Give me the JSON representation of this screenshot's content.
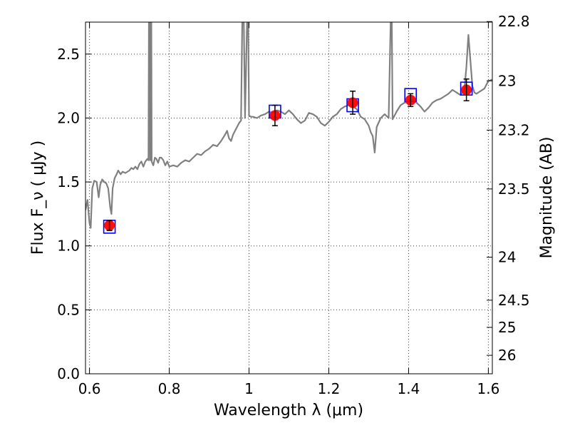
{
  "chart_data": {
    "type": "line",
    "xlabel": "Wavelength  λ (μm)",
    "ylabel": "Flux  F_ν  ( μJy )",
    "ylabel_right": "Magnitude (AB)",
    "xlim": [
      0.59,
      1.61
    ],
    "ylim": [
      0.0,
      2.75
    ],
    "grid": true,
    "x_ticks": [
      0.6,
      0.8,
      1.0,
      1.2,
      1.4,
      1.6
    ],
    "x_tick_labels": [
      "0.6",
      "0.8",
      "1",
      "1.2",
      "1.4",
      "1.6"
    ],
    "y_ticks": [
      0.0,
      0.5,
      1.0,
      1.5,
      2.0,
      2.5
    ],
    "y_tick_labels": [
      "0.0",
      "0.5",
      "1.0",
      "1.5",
      "2.0",
      "2.5"
    ],
    "right_ticks": [
      {
        "mag": 22.8,
        "label": "22.8"
      },
      {
        "mag": 23.0,
        "label": "23"
      },
      {
        "mag": 23.2,
        "label": "23.2"
      },
      {
        "mag": 23.5,
        "label": "23.5"
      },
      {
        "mag": 24.0,
        "label": "24"
      },
      {
        "mag": 24.5,
        "label": "24.5"
      },
      {
        "mag": 25.0,
        "label": "25"
      },
      {
        "mag": 26.0,
        "label": "26"
      }
    ],
    "model_spectrum": {
      "color": "#808080",
      "points": [
        [
          0.59,
          1.28
        ],
        [
          0.595,
          1.36
        ],
        [
          0.6,
          1.18
        ],
        [
          0.603,
          1.14
        ],
        [
          0.607,
          1.45
        ],
        [
          0.612,
          1.51
        ],
        [
          0.618,
          1.5
        ],
        [
          0.623,
          1.38
        ],
        [
          0.627,
          1.48
        ],
        [
          0.632,
          1.52
        ],
        [
          0.637,
          1.5
        ],
        [
          0.642,
          1.49
        ],
        [
          0.647,
          1.45
        ],
        [
          0.652,
          1.3
        ],
        [
          0.655,
          1.25
        ],
        [
          0.658,
          1.45
        ],
        [
          0.663,
          1.53
        ],
        [
          0.668,
          1.56
        ],
        [
          0.672,
          1.59
        ],
        [
          0.678,
          1.56
        ],
        [
          0.683,
          1.58
        ],
        [
          0.69,
          1.57
        ],
        [
          0.7,
          1.59
        ],
        [
          0.705,
          1.61
        ],
        [
          0.71,
          1.6
        ],
        [
          0.715,
          1.62
        ],
        [
          0.72,
          1.6
        ],
        [
          0.725,
          1.64
        ],
        [
          0.73,
          1.66
        ],
        [
          0.735,
          1.62
        ],
        [
          0.74,
          1.66
        ],
        [
          0.745,
          1.68
        ],
        [
          0.748,
          1.67
        ],
        [
          0.749,
          2.75
        ],
        [
          0.751,
          2.75
        ],
        [
          0.752,
          1.67
        ],
        [
          0.753,
          2.75
        ],
        [
          0.755,
          2.75
        ],
        [
          0.756,
          1.66
        ],
        [
          0.76,
          1.63
        ],
        [
          0.764,
          1.69
        ],
        [
          0.768,
          1.68
        ],
        [
          0.772,
          1.65
        ],
        [
          0.776,
          1.69
        ],
        [
          0.78,
          1.69
        ],
        [
          0.785,
          1.67
        ],
        [
          0.79,
          1.63
        ],
        [
          0.795,
          1.66
        ],
        [
          0.8,
          1.62
        ],
        [
          0.81,
          1.63
        ],
        [
          0.82,
          1.62
        ],
        [
          0.83,
          1.65
        ],
        [
          0.84,
          1.67
        ],
        [
          0.85,
          1.66
        ],
        [
          0.86,
          1.69
        ],
        [
          0.87,
          1.72
        ],
        [
          0.88,
          1.71
        ],
        [
          0.89,
          1.74
        ],
        [
          0.9,
          1.76
        ],
        [
          0.91,
          1.79
        ],
        [
          0.92,
          1.78
        ],
        [
          0.93,
          1.82
        ],
        [
          0.94,
          1.87
        ],
        [
          0.945,
          1.9
        ],
        [
          0.95,
          1.84
        ],
        [
          0.955,
          1.82
        ],
        [
          0.96,
          1.87
        ],
        [
          0.97,
          1.93
        ],
        [
          0.975,
          1.96
        ],
        [
          0.98,
          1.98
        ],
        [
          0.983,
          2.75
        ],
        [
          0.987,
          2.75
        ],
        [
          0.99,
          2.0
        ],
        [
          0.995,
          2.75
        ],
        [
          0.998,
          2.75
        ],
        [
          1.0,
          2.02
        ],
        [
          1.005,
          2.01
        ],
        [
          1.01,
          2.01
        ],
        [
          1.02,
          2.0
        ],
        [
          1.03,
          2.02
        ],
        [
          1.04,
          2.03
        ],
        [
          1.05,
          2.05
        ],
        [
          1.06,
          2.04
        ],
        [
          1.07,
          2.06
        ],
        [
          1.08,
          2.05
        ],
        [
          1.09,
          2.03
        ],
        [
          1.1,
          2.06
        ],
        [
          1.11,
          2.03
        ],
        [
          1.12,
          1.99
        ],
        [
          1.13,
          1.96
        ],
        [
          1.14,
          1.98
        ],
        [
          1.15,
          2.04
        ],
        [
          1.16,
          2.03
        ],
        [
          1.17,
          2.01
        ],
        [
          1.18,
          1.96
        ],
        [
          1.19,
          1.94
        ],
        [
          1.2,
          1.97
        ],
        [
          1.21,
          2.01
        ],
        [
          1.22,
          2.03
        ],
        [
          1.23,
          2.07
        ],
        [
          1.24,
          2.09
        ],
        [
          1.25,
          2.1
        ],
        [
          1.26,
          2.09
        ],
        [
          1.27,
          2.07
        ],
        [
          1.28,
          2.01
        ],
        [
          1.29,
          1.99
        ],
        [
          1.3,
          1.94
        ],
        [
          1.305,
          1.89
        ],
        [
          1.31,
          1.86
        ],
        [
          1.315,
          1.73
        ],
        [
          1.32,
          1.93
        ],
        [
          1.33,
          2.0
        ],
        [
          1.34,
          2.03
        ],
        [
          1.35,
          2.0
        ],
        [
          1.355,
          2.75
        ],
        [
          1.358,
          2.75
        ],
        [
          1.36,
          1.99
        ],
        [
          1.37,
          2.05
        ],
        [
          1.38,
          2.1
        ],
        [
          1.39,
          2.12
        ],
        [
          1.4,
          2.13
        ],
        [
          1.41,
          2.14
        ],
        [
          1.42,
          2.12
        ],
        [
          1.43,
          2.09
        ],
        [
          1.44,
          2.05
        ],
        [
          1.45,
          2.08
        ],
        [
          1.46,
          2.12
        ],
        [
          1.47,
          2.14
        ],
        [
          1.48,
          2.15
        ],
        [
          1.49,
          2.17
        ],
        [
          1.5,
          2.19
        ],
        [
          1.51,
          2.22
        ],
        [
          1.52,
          2.2
        ],
        [
          1.53,
          2.18
        ],
        [
          1.54,
          2.22
        ],
        [
          1.545,
          2.4
        ],
        [
          1.55,
          2.65
        ],
        [
          1.555,
          2.45
        ],
        [
          1.56,
          2.25
        ],
        [
          1.565,
          2.2
        ],
        [
          1.57,
          2.19
        ],
        [
          1.58,
          2.21
        ],
        [
          1.59,
          2.23
        ],
        [
          1.6,
          2.29
        ],
        [
          1.61,
          2.3
        ]
      ]
    },
    "model_photometry": {
      "color": "#0000ff",
      "points": [
        {
          "x": 0.65,
          "y": 1.15
        },
        {
          "x": 1.065,
          "y": 2.05
        },
        {
          "x": 1.26,
          "y": 2.1
        },
        {
          "x": 1.405,
          "y": 2.18
        },
        {
          "x": 1.545,
          "y": 2.23
        }
      ]
    },
    "observed": {
      "color": "#ff0000",
      "points": [
        {
          "x": 0.65,
          "y": 1.16,
          "err": 0.04
        },
        {
          "x": 1.065,
          "y": 2.02,
          "err": 0.08
        },
        {
          "x": 1.26,
          "y": 2.12,
          "err": 0.09
        },
        {
          "x": 1.405,
          "y": 2.14,
          "err": 0.05
        },
        {
          "x": 1.545,
          "y": 2.22,
          "err": 0.085
        }
      ]
    }
  }
}
